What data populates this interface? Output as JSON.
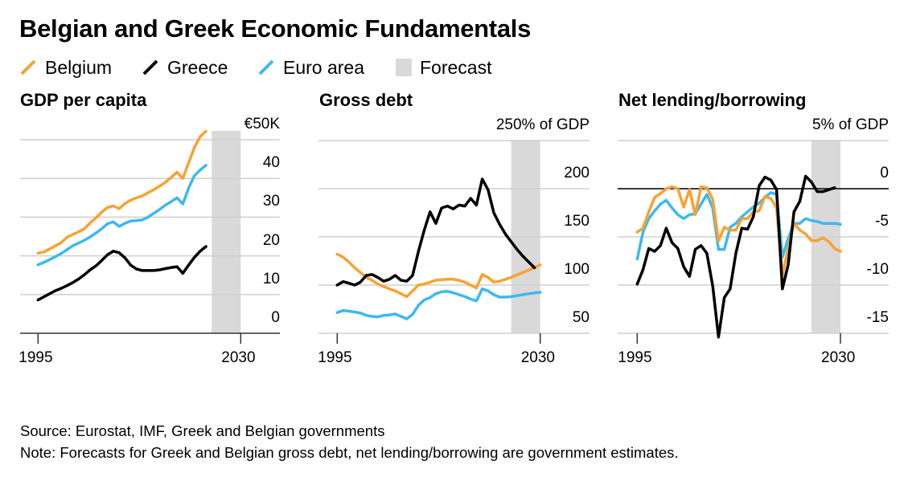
{
  "title": "Belgian and Greek Economic Fundamentals",
  "legend": [
    {
      "label": "Belgium",
      "color": "#F7A233",
      "kind": "line"
    },
    {
      "label": "Greece",
      "color": "#000000",
      "kind": "line"
    },
    {
      "label": "Euro area",
      "color": "#3DB9EE",
      "kind": "line"
    },
    {
      "label": "Forecast",
      "color": "#D9D9D9",
      "kind": "band"
    }
  ],
  "footer": {
    "source": "Source: Eurostat, IMF, Greek and Belgian governments",
    "note": "Note: Forecasts for Greek and Belgian gross debt, net lending/borrowing are government estimates."
  },
  "chart_data": [
    {
      "type": "line",
      "title": "GDP per capita",
      "x_ticks": [
        1995,
        2030
      ],
      "x_tick_labels": [
        "1995",
        "2030"
      ],
      "xlim": [
        1995,
        2030
      ],
      "ylim": [
        0,
        50
      ],
      "y_ticks": [
        0,
        10,
        20,
        30,
        40,
        50
      ],
      "y_tick_labels": [
        "0",
        "10",
        "20",
        "30",
        "40",
        "€50K"
      ],
      "grid": true,
      "forecast_range": [
        2025,
        2030
      ],
      "series": [
        {
          "name": "Belgium",
          "color": "#F7A233",
          "start_year": 1995,
          "values": [
            20.7,
            21.0,
            21.8,
            22.6,
            23.4,
            24.8,
            25.5,
            26.2,
            27.0,
            28.5,
            29.8,
            31.3,
            32.5,
            32.9,
            32.2,
            33.5,
            34.4,
            35.0,
            35.5,
            36.3,
            37.1,
            38.0,
            39.0,
            40.3,
            41.6,
            40.0,
            44.0,
            48.0,
            50.8,
            52.2
          ]
        },
        {
          "name": "Greece",
          "color": "#000000",
          "start_year": 1995,
          "values": [
            8.6,
            9.4,
            10.2,
            11.0,
            11.6,
            12.3,
            13.1,
            14.0,
            15.1,
            16.4,
            17.4,
            18.8,
            20.3,
            21.2,
            20.8,
            19.5,
            17.6,
            16.6,
            16.2,
            16.2,
            16.2,
            16.4,
            16.7,
            17.0,
            17.2,
            15.5,
            17.6,
            19.6,
            21.2,
            22.4
          ]
        },
        {
          "name": "Euro area",
          "color": "#3DB9EE",
          "start_year": 1995,
          "values": [
            17.7,
            18.3,
            19.0,
            19.8,
            20.6,
            21.6,
            22.6,
            23.3,
            24.0,
            24.9,
            25.9,
            27.0,
            28.3,
            28.8,
            27.6,
            28.4,
            29.0,
            29.1,
            29.3,
            30.0,
            31.0,
            32.0,
            33.1,
            34.0,
            35.0,
            33.4,
            37.5,
            40.7,
            42.2,
            43.4
          ]
        }
      ]
    },
    {
      "type": "line",
      "title": "Gross debt",
      "x_ticks": [
        1995,
        2030
      ],
      "x_tick_labels": [
        "1995",
        "2030"
      ],
      "xlim": [
        1995,
        2030
      ],
      "ylim": [
        50,
        250
      ],
      "y_ticks": [
        50,
        100,
        150,
        200,
        250
      ],
      "y_tick_labels": [
        "50",
        "100",
        "150",
        "200",
        "250% of GDP"
      ],
      "grid": true,
      "forecast_range": [
        2025,
        2030
      ],
      "series": [
        {
          "name": "Belgium",
          "color": "#F7A233",
          "start_year": 1995,
          "values": [
            132,
            129,
            124,
            118,
            113,
            108,
            105,
            101,
            98.5,
            96,
            94,
            91,
            88,
            94,
            100,
            101,
            103,
            105,
            105.5,
            106,
            106,
            105,
            103,
            100,
            97,
            111,
            108,
            103,
            104,
            106,
            108,
            110.5,
            113,
            115.5,
            118,
            121
          ]
        },
        {
          "name": "Greece",
          "color": "#000000",
          "start_year": 1995,
          "values": [
            100,
            103.6,
            102,
            100,
            103,
            110,
            111,
            108,
            104,
            106,
            110,
            105,
            104,
            110,
            135,
            157,
            176,
            164,
            180,
            182,
            179,
            183,
            182,
            190,
            183,
            210,
            199,
            175,
            163,
            153,
            145,
            137,
            130,
            124,
            118
          ]
        },
        {
          "name": "Euro area",
          "color": "#3DB9EE",
          "start_year": 1995,
          "values": [
            71.4,
            73.6,
            73,
            72,
            71,
            68.5,
            67.5,
            67,
            68.5,
            69,
            70,
            67.5,
            65,
            69.5,
            79,
            84.5,
            87,
            91,
            93,
            93.5,
            92,
            90,
            88,
            85.5,
            83.5,
            96,
            94,
            90,
            87.5,
            87.5,
            88,
            89,
            90,
            91,
            91.8,
            92.5
          ]
        }
      ]
    },
    {
      "type": "line",
      "title": "Net lending/borrowing",
      "x_ticks": [
        1995,
        2030
      ],
      "x_tick_labels": [
        "1995",
        "2030"
      ],
      "xlim": [
        1995,
        2030
      ],
      "ylim": [
        -15,
        5
      ],
      "y_ticks": [
        -15,
        -10,
        -5,
        0,
        5
      ],
      "y_tick_labels": [
        "-15",
        "-10",
        "-5",
        "0",
        "5% of GDP"
      ],
      "grid": true,
      "zero_line": true,
      "forecast_range": [
        2025,
        2030
      ],
      "series": [
        {
          "name": "Belgium",
          "color": "#F7A233",
          "start_year": 1995,
          "values": [
            -4.5,
            -4.1,
            -2.4,
            -0.9,
            -0.5,
            0.0,
            0.2,
            0.0,
            -1.9,
            -0.1,
            -2.7,
            0.2,
            0.1,
            -1.1,
            -5.4,
            -4.0,
            -4.3,
            -4.3,
            -3.1,
            -3.1,
            -2.4,
            -2.3,
            -0.8,
            -1.0,
            -2.0,
            -9.0,
            -6.2,
            -3.6,
            -4.3,
            -4.7,
            -5.4,
            -5.4,
            -5.1,
            -5.5,
            -6.2,
            -6.5
          ]
        },
        {
          "name": "Greece",
          "color": "#000000",
          "start_year": 1995,
          "values": [
            -9.9,
            -8.4,
            -6.2,
            -6.5,
            -5.9,
            -4.1,
            -5.6,
            -6.2,
            -8.1,
            -9.1,
            -6.3,
            -5.9,
            -6.7,
            -10.1,
            -15.4,
            -11.3,
            -10.4,
            -6.7,
            -4.1,
            -4.2,
            -2.9,
            0.3,
            1.2,
            0.9,
            -0.1,
            -10.4,
            -7.9,
            -2.4,
            -1.3,
            1.3,
            0.7,
            -0.3,
            -0.3,
            -0.1,
            0.1
          ]
        },
        {
          "name": "Euro area",
          "color": "#3DB9EE",
          "start_year": 1995,
          "values": [
            -7.3,
            -4.5,
            -3.1,
            -2.3,
            -1.6,
            -1.2,
            -2.0,
            -2.7,
            -3.1,
            -2.7,
            -2.6,
            -1.6,
            -0.6,
            -2.0,
            -6.3,
            -6.3,
            -4.0,
            -3.6,
            -2.9,
            -2.4,
            -1.9,
            -1.5,
            -0.9,
            -0.4,
            -0.6,
            -7.1,
            -5.2,
            -3.6,
            -3.6,
            -3.1,
            -3.3,
            -3.4,
            -3.6,
            -3.6,
            -3.6,
            -3.7
          ]
        }
      ]
    }
  ]
}
